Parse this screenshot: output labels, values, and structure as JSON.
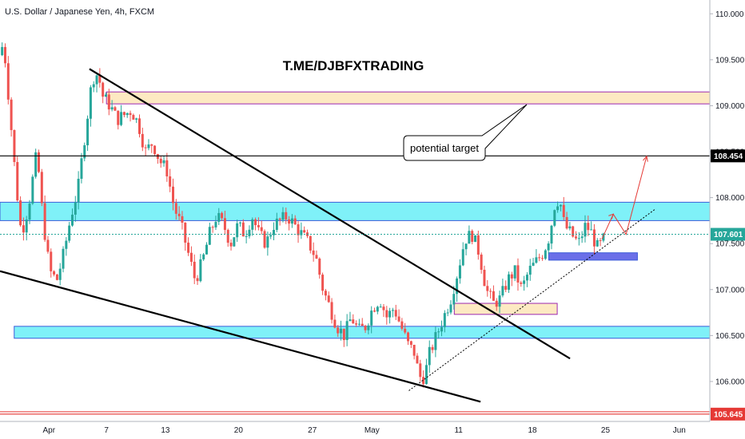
{
  "header": {
    "symbol_line": "U.S. Dollar / Japanese Yen, 4h, FXCM"
  },
  "watermark": "T.ME/DJBFXTRADING",
  "annotation": {
    "text": "potential target"
  },
  "colors": {
    "bull": "#26a69a",
    "bear": "#ef5350",
    "cyan_zone": "#7ff1f8",
    "cyan_border": "#3b5bd9",
    "sand_zone": "#fde9c2",
    "sand_border": "#9c27b0",
    "blue_zone": "#6b6fe8",
    "price_tag": "#26a69a",
    "level_tag": "#000000",
    "low_tag": "#e53935",
    "arrow": "#e53935"
  },
  "chart_data": {
    "type": "candlestick",
    "title": "U.S. Dollar / Japanese Yen, 4h, FXCM",
    "xlabel": "",
    "ylabel": "",
    "ylim": [
      105.6,
      110.15
    ],
    "xlim": [
      0,
      100
    ],
    "x_ticks": [
      {
        "x": 6.9,
        "label": "Apr"
      },
      {
        "x": 15.0,
        "label": "7"
      },
      {
        "x": 23.3,
        "label": "13"
      },
      {
        "x": 33.6,
        "label": "20"
      },
      {
        "x": 44.0,
        "label": "27"
      },
      {
        "x": 52.4,
        "label": "May"
      },
      {
        "x": 64.6,
        "label": "11"
      },
      {
        "x": 75.0,
        "label": "18"
      },
      {
        "x": 85.3,
        "label": "25"
      },
      {
        "x": 95.7,
        "label": "Jun"
      }
    ],
    "y_ticks": [
      {
        "y": 110.0,
        "label": "110.000"
      },
      {
        "y": 109.5,
        "label": "109.500"
      },
      {
        "y": 109.0,
        "label": "109.000"
      },
      {
        "y": 108.5,
        "label": "108.500"
      },
      {
        "y": 108.0,
        "label": "108.000"
      },
      {
        "y": 107.5,
        "label": "107.500"
      },
      {
        "y": 107.0,
        "label": "107.000"
      },
      {
        "y": 106.5,
        "label": "106.500"
      },
      {
        "y": 106.0,
        "label": "106.000"
      }
    ],
    "price_labels": [
      {
        "y": 108.454,
        "label": "108.454",
        "kind": "level"
      },
      {
        "y": 107.601,
        "label": "107.601",
        "kind": "last"
      },
      {
        "y": 105.645,
        "label": "105.645",
        "kind": "low"
      }
    ],
    "path": [
      [
        0,
        109.55
      ],
      [
        0.5,
        109.7
      ],
      [
        1.2,
        109.1
      ],
      [
        2.2,
        108.2
      ],
      [
        3.0,
        107.6
      ],
      [
        4.0,
        107.9
      ],
      [
        5.2,
        108.5
      ],
      [
        6.0,
        107.8
      ],
      [
        7.0,
        107.2
      ],
      [
        8.0,
        107.1
      ],
      [
        9.0,
        107.4
      ],
      [
        10.0,
        107.8
      ],
      [
        11.0,
        108.1
      ],
      [
        12.0,
        108.7
      ],
      [
        13.0,
        109.3
      ],
      [
        13.8,
        109.35
      ],
      [
        14.5,
        109.1
      ],
      [
        15.5,
        109.0
      ],
      [
        16.5,
        108.85
      ],
      [
        17.5,
        108.9
      ],
      [
        18.5,
        108.95
      ],
      [
        19.5,
        108.8
      ],
      [
        20.5,
        108.5
      ],
      [
        21.5,
        108.6
      ],
      [
        22.5,
        108.4
      ],
      [
        23.5,
        108.3
      ],
      [
        24.5,
        107.9
      ],
      [
        25.5,
        107.7
      ],
      [
        26.5,
        107.4
      ],
      [
        27.5,
        107.1
      ],
      [
        28.5,
        107.3
      ],
      [
        29.5,
        107.6
      ],
      [
        30.5,
        107.8
      ],
      [
        31.5,
        107.7
      ],
      [
        32.5,
        107.5
      ],
      [
        33.5,
        107.7
      ],
      [
        34.5,
        107.6
      ],
      [
        35.5,
        107.8
      ],
      [
        36.5,
        107.6
      ],
      [
        37.5,
        107.5
      ],
      [
        38.5,
        107.7
      ],
      [
        39.5,
        107.75
      ],
      [
        40.5,
        107.8
      ],
      [
        41.5,
        107.7
      ],
      [
        42.5,
        107.6
      ],
      [
        43.5,
        107.5
      ],
      [
        44.5,
        107.35
      ],
      [
        45.5,
        107.0
      ],
      [
        46.5,
        106.8
      ],
      [
        47.5,
        106.6
      ],
      [
        48.5,
        106.5
      ],
      [
        49.5,
        106.7
      ],
      [
        50.5,
        106.55
      ],
      [
        51.5,
        106.6
      ],
      [
        52.5,
        106.8
      ],
      [
        53.5,
        106.9
      ],
      [
        54.5,
        106.7
      ],
      [
        55.5,
        106.8
      ],
      [
        56.5,
        106.6
      ],
      [
        57.5,
        106.4
      ],
      [
        58.5,
        106.3
      ],
      [
        59.0,
        106.05
      ],
      [
        59.8,
        106.05
      ],
      [
        60.5,
        106.3
      ],
      [
        61.5,
        106.5
      ],
      [
        62.5,
        106.7
      ],
      [
        63.5,
        106.9
      ],
      [
        64.5,
        107.2
      ],
      [
        65.5,
        107.55
      ],
      [
        66.5,
        107.6
      ],
      [
        67.5,
        107.4
      ],
      [
        68.5,
        107.0
      ],
      [
        69.5,
        106.85
      ],
      [
        70.5,
        106.9
      ],
      [
        71.5,
        107.1
      ],
      [
        72.5,
        107.2
      ],
      [
        73.5,
        107.0
      ],
      [
        74.5,
        107.2
      ],
      [
        75.5,
        107.3
      ],
      [
        76.5,
        107.4
      ],
      [
        77.5,
        107.6
      ],
      [
        78.0,
        107.9
      ],
      [
        78.8,
        108.0
      ],
      [
        79.5,
        107.7
      ],
      [
        80.5,
        107.6
      ],
      [
        81.5,
        107.5
      ],
      [
        82.5,
        107.7
      ],
      [
        83.5,
        107.6
      ],
      [
        84.0,
        107.45
      ],
      [
        84.8,
        107.5
      ],
      [
        85.3,
        107.6
      ]
    ],
    "zones": [
      {
        "x1": 0,
        "x2": 100,
        "y_top": 107.95,
        "y_bottom": 107.75,
        "color": "cyan"
      },
      {
        "x1": 2,
        "x2": 100,
        "y_top": 106.6,
        "y_bottom": 106.47,
        "color": "cyan"
      },
      {
        "x1": 15,
        "x2": 100,
        "y_top": 109.15,
        "y_bottom": 109.02,
        "color": "sand"
      },
      {
        "x1": 64,
        "x2": 78.5,
        "y_top": 106.85,
        "y_bottom": 106.73,
        "color": "sand"
      },
      {
        "x1": 77.3,
        "x2": 89.8,
        "y_top": 107.4,
        "y_bottom": 107.32,
        "color": "blue"
      }
    ],
    "trendlines": [
      {
        "x1": 12.6,
        "y1": 109.4,
        "x2": 80.3,
        "y2": 106.25,
        "style": "solid"
      },
      {
        "x1": 0,
        "y1": 107.2,
        "x2": 67.7,
        "y2": 105.78,
        "style": "solid"
      },
      {
        "x1": 57.6,
        "y1": 105.9,
        "x2": 92.4,
        "y2": 107.88,
        "style": "dotted"
      }
    ],
    "hlines": [
      {
        "y": 108.454,
        "color": "#000000",
        "style": "solid"
      },
      {
        "y": 107.601,
        "color": "#26a69a",
        "style": "dotted"
      },
      {
        "y": 105.645,
        "color": "#e53935",
        "style": "solid"
      }
    ],
    "projection": [
      [
        84.8,
        107.55
      ],
      [
        86.4,
        107.82
      ],
      [
        88.2,
        107.6
      ],
      [
        91.1,
        108.45
      ]
    ],
    "grid": false,
    "legend": "none"
  }
}
